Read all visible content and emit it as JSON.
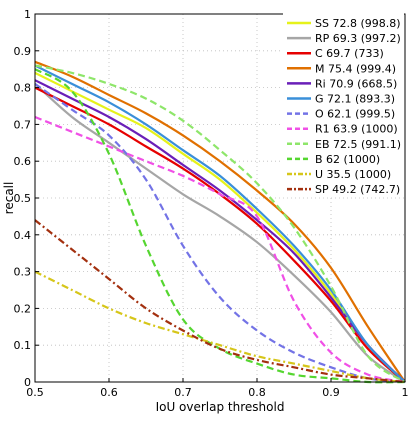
{
  "chart_data": {
    "type": "line",
    "xlabel": "IoU overlap threshold",
    "ylabel": "recall",
    "xlim": [
      0.5,
      1.0
    ],
    "ylim": [
      0,
      1
    ],
    "xticks": [
      0.5,
      0.6,
      0.7,
      0.8,
      0.9,
      1
    ],
    "xtick_labels": [
      "0.5",
      "0.6",
      "0.7",
      "0.8",
      "0.9",
      "1"
    ],
    "yticks": [
      0,
      0.1,
      0.2,
      0.3,
      0.4,
      0.5,
      0.6,
      0.7,
      0.8,
      0.9,
      1
    ],
    "ytick_labels": [
      "0",
      "0.1",
      "0.2",
      "0.3",
      "0.4",
      "0.5",
      "0.6",
      "0.7",
      "0.8",
      "0.9",
      "1"
    ],
    "grid": true,
    "legend_position": "top-right",
    "series": [
      {
        "name": "SS 72.8 (998.8)",
        "color": "#e6f21a",
        "dash": "solid",
        "x": [
          0.5,
          0.55,
          0.6,
          0.65,
          0.7,
          0.75,
          0.8,
          0.85,
          0.9,
          0.95,
          1.0
        ],
        "y": [
          0.84,
          0.79,
          0.74,
          0.69,
          0.62,
          0.55,
          0.46,
          0.36,
          0.24,
          0.1,
          0.0
        ]
      },
      {
        "name": "RP 69.3 (997.2)",
        "color": "#a6a6a6",
        "dash": "solid",
        "x": [
          0.5,
          0.55,
          0.6,
          0.65,
          0.7,
          0.75,
          0.8,
          0.85,
          0.9,
          0.95,
          1.0
        ],
        "y": [
          0.81,
          0.72,
          0.65,
          0.58,
          0.51,
          0.45,
          0.38,
          0.29,
          0.19,
          0.07,
          0.0
        ]
      },
      {
        "name": "C 69.7 (733)",
        "color": "#e60000",
        "dash": "solid",
        "x": [
          0.5,
          0.55,
          0.6,
          0.65,
          0.7,
          0.75,
          0.8,
          0.85,
          0.9,
          0.95,
          1.0
        ],
        "y": [
          0.8,
          0.75,
          0.7,
          0.64,
          0.58,
          0.51,
          0.43,
          0.33,
          0.22,
          0.09,
          0.0
        ]
      },
      {
        "name": "M 75.4 (999.4)",
        "color": "#e07000",
        "dash": "solid",
        "x": [
          0.5,
          0.55,
          0.6,
          0.65,
          0.7,
          0.75,
          0.8,
          0.85,
          0.9,
          0.95,
          1.0
        ],
        "y": [
          0.87,
          0.83,
          0.78,
          0.73,
          0.67,
          0.6,
          0.52,
          0.43,
          0.31,
          0.15,
          0.0
        ]
      },
      {
        "name": "Ri 70.9 (668.5)",
        "color": "#6a1fb8",
        "dash": "solid",
        "x": [
          0.5,
          0.55,
          0.6,
          0.65,
          0.7,
          0.75,
          0.8,
          0.85,
          0.9,
          0.95,
          1.0
        ],
        "y": [
          0.82,
          0.77,
          0.72,
          0.66,
          0.59,
          0.52,
          0.44,
          0.35,
          0.23,
          0.1,
          0.0
        ]
      },
      {
        "name": "G 72.1 (893.3)",
        "color": "#3a8fd9",
        "dash": "solid",
        "x": [
          0.5,
          0.55,
          0.6,
          0.65,
          0.7,
          0.75,
          0.8,
          0.85,
          0.9,
          0.95,
          1.0
        ],
        "y": [
          0.86,
          0.81,
          0.76,
          0.7,
          0.63,
          0.56,
          0.47,
          0.37,
          0.25,
          0.1,
          0.0
        ]
      },
      {
        "name": "O 62.1 (999.5)",
        "color": "#7373e6",
        "dash": "dash",
        "x": [
          0.5,
          0.55,
          0.6,
          0.65,
          0.7,
          0.75,
          0.8,
          0.85,
          0.9,
          0.95,
          1.0
        ],
        "y": [
          0.81,
          0.74,
          0.67,
          0.55,
          0.37,
          0.23,
          0.14,
          0.08,
          0.04,
          0.01,
          0.0
        ]
      },
      {
        "name": "R1 63.9 (1000)",
        "color": "#f050e6",
        "dash": "dash",
        "x": [
          0.5,
          0.55,
          0.6,
          0.65,
          0.7,
          0.75,
          0.8,
          0.85,
          0.9,
          0.95,
          1.0
        ],
        "y": [
          0.72,
          0.68,
          0.64,
          0.6,
          0.56,
          0.51,
          0.45,
          0.22,
          0.08,
          0.02,
          0.0
        ]
      },
      {
        "name": "EB 72.5 (991.1)",
        "color": "#8ee66a",
        "dash": "dash",
        "x": [
          0.5,
          0.55,
          0.6,
          0.65,
          0.7,
          0.75,
          0.8,
          0.85,
          0.9,
          0.95,
          1.0
        ],
        "y": [
          0.86,
          0.84,
          0.81,
          0.77,
          0.71,
          0.63,
          0.54,
          0.42,
          0.26,
          0.07,
          0.0
        ]
      },
      {
        "name": "B 62 (1000)",
        "color": "#55d630",
        "dash": "dash",
        "x": [
          0.5,
          0.55,
          0.6,
          0.65,
          0.7,
          0.75,
          0.8,
          0.85,
          0.9,
          0.95,
          1.0
        ],
        "y": [
          0.85,
          0.79,
          0.62,
          0.37,
          0.17,
          0.09,
          0.05,
          0.02,
          0.01,
          0.0,
          0.0
        ]
      },
      {
        "name": "U 35.5 (1000)",
        "color": "#d6c61a",
        "dash": "dashdot",
        "x": [
          0.5,
          0.55,
          0.6,
          0.65,
          0.7,
          0.75,
          0.8,
          0.85,
          0.9,
          0.95,
          1.0
        ],
        "y": [
          0.3,
          0.25,
          0.2,
          0.16,
          0.13,
          0.1,
          0.07,
          0.05,
          0.03,
          0.01,
          0.0
        ]
      },
      {
        "name": "SP 49.2 (742.7)",
        "color": "#a3300f",
        "dash": "dashdot",
        "x": [
          0.5,
          0.55,
          0.6,
          0.65,
          0.7,
          0.75,
          0.8,
          0.85,
          0.9,
          0.95,
          1.0
        ],
        "y": [
          0.44,
          0.36,
          0.28,
          0.2,
          0.14,
          0.09,
          0.06,
          0.04,
          0.02,
          0.01,
          0.0
        ]
      }
    ]
  }
}
